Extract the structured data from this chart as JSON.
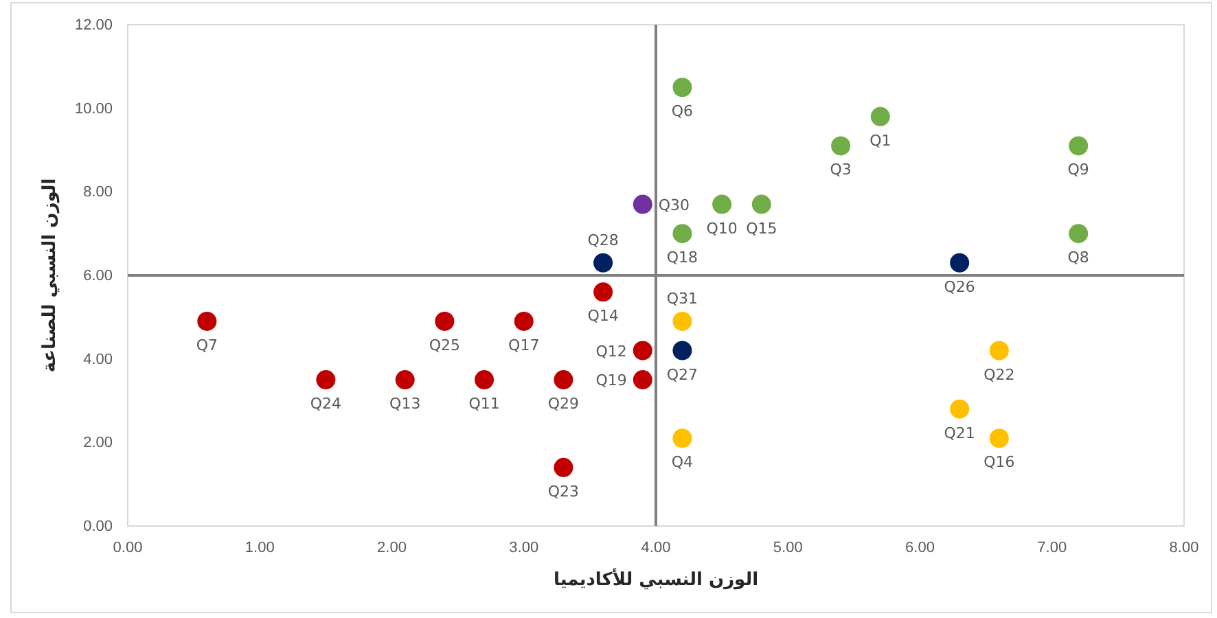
{
  "chart_data": {
    "type": "scatter",
    "xlabel": "الوزن النسبي للأكاديميا",
    "ylabel": "الوزن النسبي للصناعة",
    "x": [
      4.2,
      5.7,
      5.4,
      7.2,
      3.9,
      4.5,
      4.8,
      4.2,
      7.2,
      3.6,
      6.3,
      3.6,
      0.6,
      2.4,
      3.0,
      4.2,
      3.9,
      4.2,
      6.6,
      1.5,
      2.1,
      2.7,
      3.3,
      3.9,
      6.3,
      4.2,
      6.6,
      3.3
    ],
    "values": [
      10.5,
      9.8,
      9.1,
      9.1,
      7.7,
      7.7,
      7.7,
      7.0,
      7.0,
      6.3,
      6.3,
      5.6,
      4.9,
      4.9,
      4.9,
      4.9,
      4.2,
      4.2,
      4.2,
      3.5,
      3.5,
      3.5,
      3.5,
      3.5,
      2.8,
      2.1,
      2.1,
      1.4
    ],
    "colors": [
      "#70ad47",
      "#70ad47",
      "#70ad47",
      "#70ad47",
      "#7030a0",
      "#70ad47",
      "#70ad47",
      "#70ad47",
      "#70ad47",
      "#002060",
      "#002060",
      "#c00000",
      "#c00000",
      "#c00000",
      "#c00000",
      "#ffc000",
      "#c00000",
      "#002060",
      "#ffc000",
      "#c00000",
      "#c00000",
      "#c00000",
      "#c00000",
      "#c00000",
      "#ffc000",
      "#ffc000",
      "#ffc000",
      "#c00000"
    ],
    "annotations": [
      {
        "text": "Q6",
        "x": 4.2,
        "y": 10.5
      },
      {
        "text": "Q1",
        "x": 5.7,
        "y": 9.8
      },
      {
        "text": "Q3",
        "x": 5.4,
        "y": 9.1
      },
      {
        "text": "Q9",
        "x": 7.2,
        "y": 9.1
      },
      {
        "text": "Q30",
        "x": 3.9,
        "y": 7.7
      },
      {
        "text": "Q10",
        "x": 4.5,
        "y": 7.7
      },
      {
        "text": "Q15",
        "x": 4.8,
        "y": 7.7
      },
      {
        "text": "Q18",
        "x": 4.2,
        "y": 7.0
      },
      {
        "text": "Q8",
        "x": 7.2,
        "y": 7.0
      },
      {
        "text": "Q28",
        "x": 3.6,
        "y": 6.3
      },
      {
        "text": "Q26",
        "x": 6.3,
        "y": 6.3
      },
      {
        "text": "Q14",
        "x": 3.6,
        "y": 5.6
      },
      {
        "text": "Q7",
        "x": 0.6,
        "y": 4.9
      },
      {
        "text": "Q25",
        "x": 2.4,
        "y": 4.9
      },
      {
        "text": "Q17",
        "x": 3.0,
        "y": 4.9
      },
      {
        "text": "Q31",
        "x": 4.2,
        "y": 4.9
      },
      {
        "text": "Q12",
        "x": 3.9,
        "y": 4.2
      },
      {
        "text": "Q27",
        "x": 4.2,
        "y": 4.2
      },
      {
        "text": "Q22",
        "x": 6.6,
        "y": 4.2
      },
      {
        "text": "Q24",
        "x": 1.5,
        "y": 3.5
      },
      {
        "text": "Q13",
        "x": 2.1,
        "y": 3.5
      },
      {
        "text": "Q11",
        "x": 2.7,
        "y": 3.5
      },
      {
        "text": "Q29",
        "x": 3.3,
        "y": 3.5
      },
      {
        "text": "Q19",
        "x": 3.9,
        "y": 3.5
      },
      {
        "text": "Q21",
        "x": 6.3,
        "y": 2.8
      },
      {
        "text": "Q4",
        "x": 4.2,
        "y": 2.1
      },
      {
        "text": "Q16",
        "x": 6.6,
        "y": 2.1
      },
      {
        "text": "Q23",
        "x": 3.3,
        "y": 1.4
      }
    ],
    "xlim": [
      0,
      8
    ],
    "xticks": [
      {
        "value": 0,
        "label": "0.00"
      },
      {
        "value": 1,
        "label": "1.00"
      },
      {
        "value": 2,
        "label": "2.00"
      },
      {
        "value": 3,
        "label": "3.00"
      },
      {
        "value": 4,
        "label": "4.00"
      },
      {
        "value": 5,
        "label": "5.00"
      },
      {
        "value": 6,
        "label": "6.00"
      },
      {
        "value": 7,
        "label": "7.00"
      },
      {
        "value": 8,
        "label": "8.00"
      }
    ],
    "ylim": [
      0,
      12
    ],
    "yticks": [
      {
        "value": 0,
        "label": "0.00"
      },
      {
        "value": 2,
        "label": "2.00"
      },
      {
        "value": 4,
        "label": "4.00"
      },
      {
        "value": 6,
        "label": "6.00"
      },
      {
        "value": 8,
        "label": "8.00"
      },
      {
        "value": 10,
        "label": "10.00"
      },
      {
        "value": 12,
        "label": "12.00"
      }
    ],
    "ref_lines": [
      {
        "axis": "x",
        "value": 4,
        "color": "#7f7f7f"
      },
      {
        "axis": "y",
        "value": 6,
        "color": "#7f7f7f"
      }
    ],
    "marker": "circle",
    "grid": false
  }
}
